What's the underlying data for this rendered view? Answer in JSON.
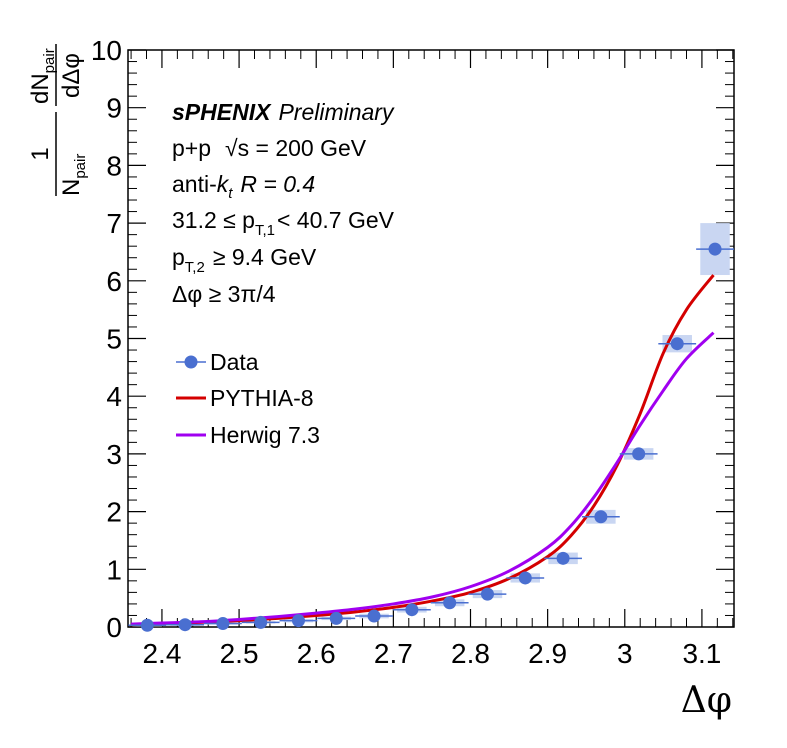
{
  "chart_data": {
    "type": "scatter",
    "xlabel": "Δφ",
    "ylabel": {
      "numerator": "1",
      "denominator": "N",
      "denominator_sub": "pair",
      "deriv_top": "dN",
      "deriv_top_sub": "pair",
      "deriv_bottom": "dΔφ"
    },
    "xlim": [
      2.356,
      3.14159
    ],
    "ylim": [
      0,
      10
    ],
    "x_ticks": [
      "2.4",
      "2.5",
      "2.6",
      "2.7",
      "2.8",
      "2.9",
      "3",
      "3.1"
    ],
    "y_ticks": [
      "0",
      "1",
      "2",
      "3",
      "4",
      "5",
      "6",
      "7",
      "8",
      "9",
      "10"
    ],
    "annotations": {
      "experiment": "sPHENIX",
      "status": "Preliminary",
      "system": "p+p",
      "energy": "√s = 200 GeV",
      "algo_prefix": "anti-",
      "algo_k": "k",
      "algo_k_sub": "t",
      "algo_radius": "R = 0.4",
      "pt1_prefix": "31.2 ≤ p",
      "pt1_sub": "T,1",
      "pt1_suffix": "< 40.7 GeV",
      "pt2_prefix": "p",
      "pt2_sub": "T,2",
      "pt2_suffix": "≥ 9.4 GeV",
      "dphi_cut": "Δφ ≥ 3π/4"
    },
    "legend": {
      "position": "left-middle",
      "entries": [
        "Data",
        "PYTHIA-8",
        "Herwig 7.3"
      ]
    },
    "series": [
      {
        "name": "Data",
        "color": "#4a6fd0",
        "syst_color": "#c9d6f2",
        "x": [
          2.381,
          2.43,
          2.479,
          2.528,
          2.577,
          2.626,
          2.675,
          2.724,
          2.773,
          2.822,
          2.871,
          2.92,
          2.969,
          3.018,
          3.068,
          3.117
        ],
        "y": [
          0.03,
          0.04,
          0.06,
          0.08,
          0.11,
          0.15,
          0.19,
          0.3,
          0.42,
          0.57,
          0.85,
          1.19,
          1.91,
          3.0,
          4.91,
          6.55
        ],
        "xerr": 0.0245,
        "syst": [
          0.02,
          0.02,
          0.02,
          0.02,
          0.03,
          0.03,
          0.04,
          0.05,
          0.06,
          0.07,
          0.08,
          0.1,
          0.12,
          0.1,
          0.15,
          0.45
        ]
      },
      {
        "name": "PYTHIA-8",
        "color": "#d40000",
        "x": [
          2.36,
          2.4,
          2.45,
          2.5,
          2.55,
          2.6,
          2.65,
          2.7,
          2.75,
          2.8,
          2.85,
          2.9,
          2.93,
          2.96,
          2.99,
          3.02,
          3.05,
          3.08,
          3.115
        ],
        "y": [
          0.04,
          0.06,
          0.08,
          0.11,
          0.15,
          0.2,
          0.26,
          0.34,
          0.45,
          0.6,
          0.84,
          1.22,
          1.58,
          2.1,
          2.8,
          3.7,
          4.75,
          5.5,
          6.1
        ]
      },
      {
        "name": "Herwig 7.3",
        "color": "#a000f0",
        "x": [
          2.36,
          2.4,
          2.45,
          2.5,
          2.55,
          2.6,
          2.65,
          2.7,
          2.75,
          2.8,
          2.85,
          2.9,
          2.93,
          2.96,
          2.99,
          3.02,
          3.05,
          3.08,
          3.115
        ],
        "y": [
          0.05,
          0.07,
          0.09,
          0.13,
          0.18,
          0.24,
          0.31,
          0.4,
          0.52,
          0.7,
          0.97,
          1.38,
          1.75,
          2.25,
          2.85,
          3.5,
          4.1,
          4.65,
          5.1
        ]
      }
    ]
  }
}
